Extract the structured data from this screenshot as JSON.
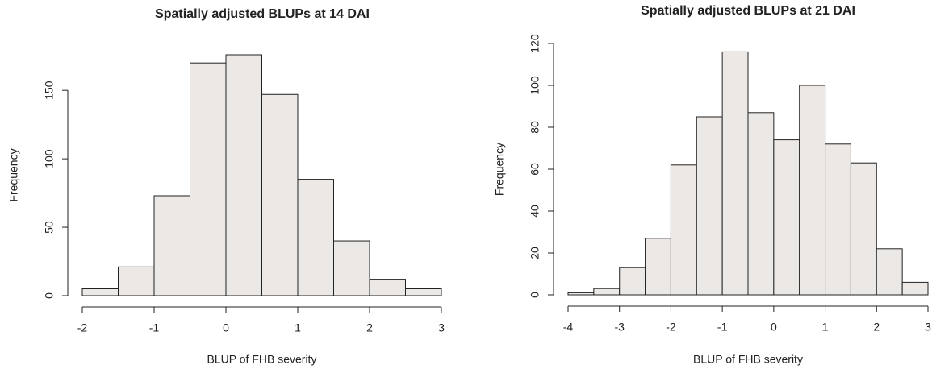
{
  "chart_data": [
    {
      "type": "histogram",
      "title": "Spatially adjusted BLUPs at 14 DAI",
      "x_label": "BLUP of FHB severity",
      "y_label": "Frequency",
      "bins": [
        -2,
        -1.5,
        -1,
        -0.5,
        0,
        0.5,
        1,
        1.5,
        2,
        2.5,
        3
      ],
      "values": [
        5,
        21,
        73,
        170,
        176,
        147,
        85,
        40,
        12,
        5
      ],
      "color": "#ece8e6",
      "xlim": [
        -2,
        3
      ],
      "xticks": [
        -2,
        -1,
        0,
        1,
        2,
        3
      ],
      "ylim": [
        0,
        176
      ],
      "yticks": [
        0,
        50,
        100,
        150
      ]
    },
    {
      "type": "histogram",
      "title": "Spatially adjusted BLUPs at 21 DAI",
      "x_label": "BLUP of FHB severity",
      "y_label": "Frequency",
      "bins": [
        -4,
        -3.5,
        -3,
        -2.5,
        -2,
        -1.5,
        -1,
        -0.5,
        0,
        0.5,
        1,
        1.5,
        2,
        2.5,
        3
      ],
      "values": [
        1,
        3,
        13,
        27,
        62,
        85,
        116,
        87,
        74,
        100,
        72,
        63,
        22,
        6
      ],
      "color": "#ece8e6",
      "xlim": [
        -4,
        3
      ],
      "xticks": [
        -4,
        -3,
        -2,
        -1,
        0,
        1,
        2,
        3
      ],
      "ylim": [
        0,
        120
      ],
      "yticks": [
        0,
        20,
        40,
        60,
        80,
        100,
        120
      ]
    }
  ]
}
